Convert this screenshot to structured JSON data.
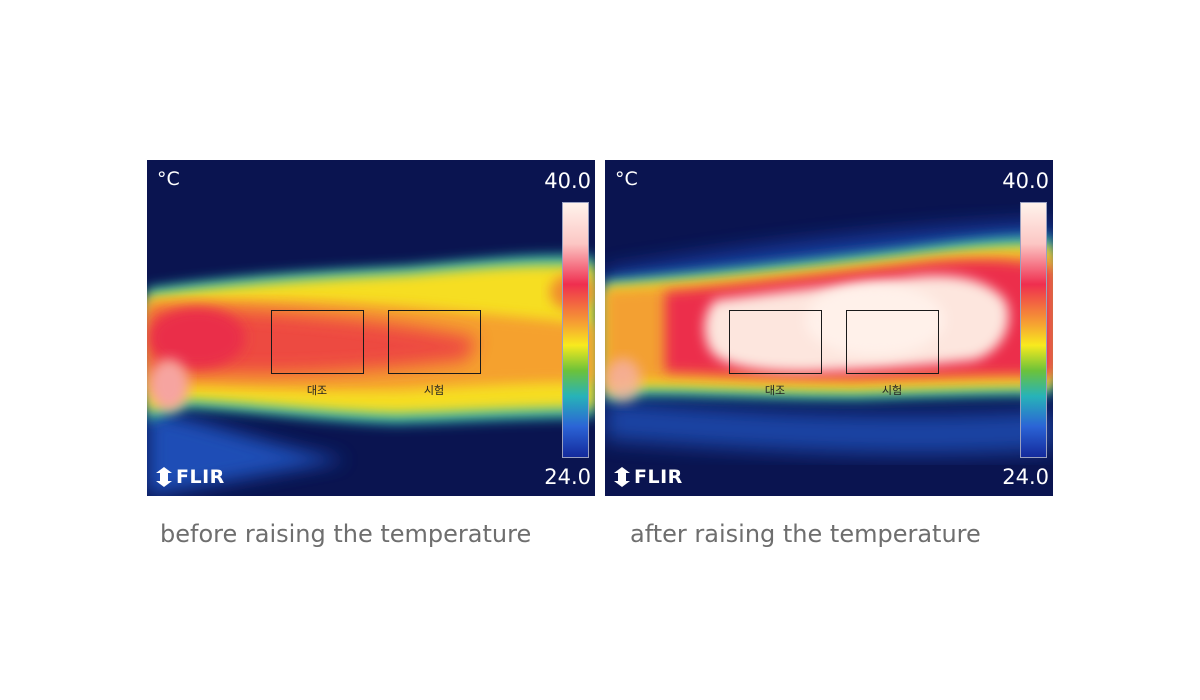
{
  "panels": [
    {
      "unit": "°C",
      "scale_max": "40.0",
      "scale_min": "24.0",
      "logo": "FLIR",
      "roi_labels": [
        "대조",
        "시험"
      ],
      "caption": "before raising the temperature"
    },
    {
      "unit": "°C",
      "scale_max": "40.0",
      "scale_min": "24.0",
      "logo": "FLIR",
      "roi_labels": [
        "대조",
        "시험"
      ],
      "caption": "after raising the temperature"
    }
  ],
  "colors": {
    "background": "#0a1450",
    "palette": [
      "#fff3ec",
      "#ef2e4f",
      "#f6a531",
      "#f8ea1e",
      "#6cc23a",
      "#27b3b8",
      "#2b64d6",
      "#142a9c"
    ],
    "caption_text": "#6e6e6e"
  },
  "icons": {
    "logo_mark": "flir-logo-icon"
  }
}
